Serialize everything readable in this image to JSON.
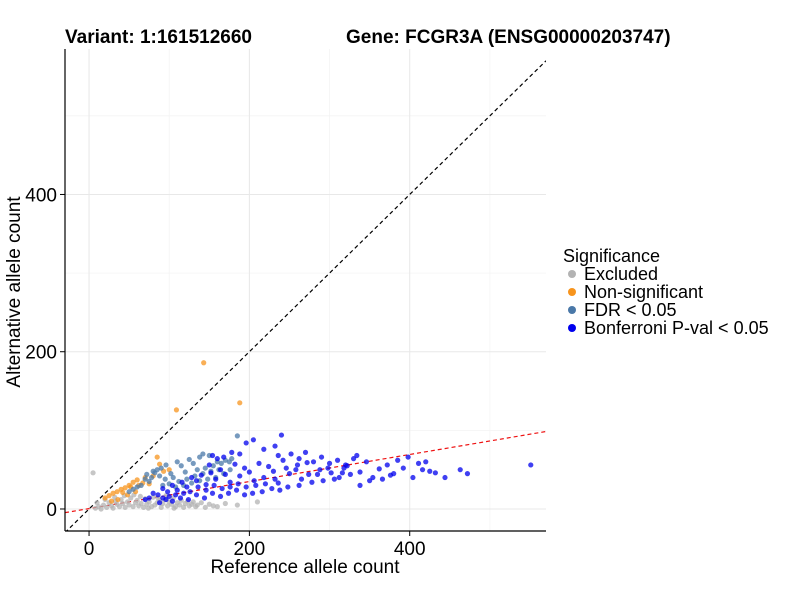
{
  "chart_data": {
    "type": "scatter",
    "title_left": "Variant: 1:161512660",
    "title_right": "Gene: FCGR3A (ENSG00000203747)",
    "xlabel": "Reference allele count",
    "ylabel": "Alternative allele count",
    "xlim": [
      -30,
      570
    ],
    "ylim": [
      -28,
      585
    ],
    "x_ticks": [
      0,
      200,
      400
    ],
    "y_ticks": [
      0,
      200,
      400
    ],
    "x_minor": [
      100,
      300,
      500
    ],
    "y_minor": [
      100,
      300,
      500
    ],
    "grid": true,
    "legend": {
      "title": "Significance",
      "position": "right",
      "items": [
        {
          "key": "excluded",
          "label": "Excluded",
          "color": "#b3b3b3"
        },
        {
          "key": "nonsig",
          "label": "Non-significant",
          "color": "#f7941d"
        },
        {
          "key": "fdr",
          "label": "FDR < 0.05",
          "color": "#4a78a8"
        },
        {
          "key": "bonf",
          "label": "Bonferroni P-val < 0.05",
          "color": "#0000ee"
        }
      ]
    },
    "reference_lines": [
      {
        "name": "identity",
        "style": "dashed",
        "color": "#000000",
        "slope": 1,
        "intercept": 0
      },
      {
        "name": "fitted",
        "style": "dashed",
        "color": "#ee1111",
        "slope": 0.172,
        "intercept": 0.5
      }
    ],
    "series": [
      {
        "name": "Excluded",
        "color": "#b3b3b3",
        "points": [
          [
            5,
            46
          ],
          [
            8,
            1
          ],
          [
            12,
            3
          ],
          [
            15,
            0
          ],
          [
            18,
            5
          ],
          [
            22,
            2
          ],
          [
            25,
            8
          ],
          [
            28,
            4
          ],
          [
            30,
            1
          ],
          [
            33,
            10
          ],
          [
            35,
            6
          ],
          [
            38,
            3
          ],
          [
            40,
            12
          ],
          [
            42,
            7
          ],
          [
            45,
            2
          ],
          [
            48,
            9
          ],
          [
            50,
            5
          ],
          [
            52,
            14
          ],
          [
            55,
            3
          ],
          [
            58,
            8
          ],
          [
            60,
            11
          ],
          [
            62,
            4
          ],
          [
            65,
            7
          ],
          [
            68,
            2
          ],
          [
            70,
            13
          ],
          [
            72,
            6
          ],
          [
            75,
            9
          ],
          [
            78,
            3
          ],
          [
            80,
            15
          ],
          [
            82,
            5
          ],
          [
            85,
            8
          ],
          [
            88,
            11
          ],
          [
            90,
            2
          ],
          [
            92,
            7
          ],
          [
            95,
            12
          ],
          [
            98,
            4
          ],
          [
            100,
            9
          ],
          [
            103,
            6
          ],
          [
            105,
            14
          ],
          [
            108,
            3
          ],
          [
            110,
            8
          ],
          [
            113,
            5
          ],
          [
            115,
            11
          ],
          [
            118,
            2
          ],
          [
            120,
            7
          ],
          [
            123,
            10
          ],
          [
            125,
            4
          ],
          [
            128,
            6
          ],
          [
            130,
            9
          ],
          [
            133,
            3
          ],
          [
            135,
            5
          ],
          [
            140,
            8
          ],
          [
            145,
            2
          ],
          [
            150,
            6
          ],
          [
            155,
            4
          ],
          [
            160,
            3
          ],
          [
            170,
            7
          ],
          [
            185,
            5
          ],
          [
            210,
            9
          ],
          [
            10,
            8
          ],
          [
            20,
            12
          ],
          [
            32,
            15
          ],
          [
            44,
            17
          ],
          [
            56,
            18
          ],
          [
            64,
            16
          ],
          [
            74,
            1
          ],
          [
            86,
            14
          ],
          [
            96,
            17
          ],
          [
            106,
            1
          ]
        ]
      },
      {
        "name": "Non-significant",
        "color": "#f7941d",
        "points": [
          [
            143,
            186
          ],
          [
            109,
            126
          ],
          [
            188,
            135
          ],
          [
            85,
            66
          ],
          [
            88,
            57
          ],
          [
            100,
            50
          ],
          [
            93,
            48
          ],
          [
            80,
            42
          ],
          [
            70,
            40
          ],
          [
            60,
            37
          ],
          [
            55,
            34
          ],
          [
            67,
            33
          ],
          [
            75,
            32
          ],
          [
            50,
            30
          ],
          [
            45,
            27
          ],
          [
            40,
            25
          ],
          [
            35,
            22
          ],
          [
            30,
            20
          ],
          [
            25,
            17
          ],
          [
            20,
            14
          ],
          [
            48,
            18
          ],
          [
            58,
            22
          ],
          [
            36,
            12
          ],
          [
            28,
            10
          ],
          [
            42,
            21
          ],
          [
            52,
            28
          ],
          [
            62,
            30
          ]
        ]
      },
      {
        "name": "FDR < 0.05",
        "color": "#4a78a8",
        "points": [
          [
            185,
            93
          ],
          [
            142,
            70
          ],
          [
            150,
            68
          ],
          [
            138,
            66
          ],
          [
            125,
            63
          ],
          [
            110,
            60
          ],
          [
            96,
            56
          ],
          [
            90,
            52
          ],
          [
            85,
            50
          ],
          [
            80,
            48
          ],
          [
            115,
            55
          ],
          [
            130,
            58
          ],
          [
            160,
            60
          ],
          [
            170,
            62
          ],
          [
            178,
            64
          ],
          [
            102,
            45
          ],
          [
            120,
            47
          ],
          [
            135,
            50
          ],
          [
            145,
            52
          ],
          [
            155,
            55
          ],
          [
            165,
            58
          ],
          [
            175,
            60
          ],
          [
            70,
            38
          ],
          [
            75,
            35
          ],
          [
            65,
            30
          ],
          [
            60,
            28
          ],
          [
            55,
            25
          ],
          [
            50,
            22
          ],
          [
            78,
            40
          ],
          [
            88,
            42
          ],
          [
            95,
            38
          ],
          [
            105,
            40
          ],
          [
            112,
            35
          ],
          [
            122,
            38
          ],
          [
            132,
            42
          ],
          [
            142,
            45
          ],
          [
            152,
            48
          ],
          [
            162,
            50
          ],
          [
            72,
            44
          ],
          [
            82,
            46
          ],
          [
            92,
            30
          ],
          [
            100,
            32
          ],
          [
            108,
            28
          ],
          [
            118,
            30
          ],
          [
            128,
            33
          ],
          [
            138,
            36
          ],
          [
            148,
            38
          ],
          [
            158,
            40
          ],
          [
            168,
            45
          ],
          [
            176,
            50
          ]
        ]
      },
      {
        "name": "Bonferroni P-val < 0.05",
        "color": "#0000ee",
        "points": [
          [
            551,
            56
          ],
          [
            472,
            45
          ],
          [
            463,
            50
          ],
          [
            444,
            40
          ],
          [
            425,
            48
          ],
          [
            411,
            58
          ],
          [
            385,
            62
          ],
          [
            376,
            43
          ],
          [
            362,
            51
          ],
          [
            350,
            36
          ],
          [
            338,
            47
          ],
          [
            322,
            55
          ],
          [
            312,
            40
          ],
          [
            298,
            52
          ],
          [
            285,
            44
          ],
          [
            272,
            59
          ],
          [
            265,
            38
          ],
          [
            258,
            50
          ],
          [
            250,
            45
          ],
          [
            242,
            62
          ],
          [
            236,
            33
          ],
          [
            230,
            48
          ],
          [
            224,
            54
          ],
          [
            218,
            40
          ],
          [
            212,
            58
          ],
          [
            206,
            36
          ],
          [
            200,
            47
          ],
          [
            194,
            52
          ],
          [
            188,
            42
          ],
          [
            182,
            57
          ],
          [
            176,
            34
          ],
          [
            170,
            44
          ],
          [
            164,
            50
          ],
          [
            158,
            38
          ],
          [
            152,
            46
          ],
          [
            146,
            31
          ],
          [
            140,
            43
          ],
          [
            134,
            36
          ],
          [
            128,
            40
          ],
          [
            122,
            28
          ],
          [
            116,
            34
          ],
          [
            110,
            24
          ],
          [
            104,
            30
          ],
          [
            98,
            22
          ],
          [
            92,
            26
          ],
          [
            86,
            18
          ],
          [
            80,
            20
          ],
          [
            75,
            14
          ],
          [
            70,
            12
          ],
          [
            240,
            94
          ],
          [
            232,
            80
          ],
          [
            218,
            76
          ],
          [
            205,
            88
          ],
          [
            196,
            84
          ],
          [
            188,
            70
          ],
          [
            178,
            72
          ],
          [
            168,
            66
          ],
          [
            160,
            64
          ],
          [
            154,
            68
          ],
          [
            150,
            56
          ],
          [
            236,
            68
          ],
          [
            252,
            70
          ],
          [
            262,
            64
          ],
          [
            270,
            72
          ],
          [
            280,
            60
          ],
          [
            290,
            66
          ],
          [
            300,
            58
          ],
          [
            310,
            62
          ],
          [
            320,
            56
          ],
          [
            330,
            64
          ],
          [
            262,
            30
          ],
          [
            278,
            34
          ],
          [
            292,
            36
          ],
          [
            306,
            38
          ],
          [
            316,
            46
          ],
          [
            326,
            44
          ],
          [
            248,
            28
          ],
          [
            238,
            24
          ],
          [
            228,
            26
          ],
          [
            216,
            22
          ],
          [
            204,
            20
          ],
          [
            194,
            18
          ],
          [
            184,
            24
          ],
          [
            174,
            20
          ],
          [
            164,
            16
          ],
          [
            154,
            20
          ],
          [
            144,
            14
          ],
          [
            134,
            18
          ],
          [
            124,
            12
          ],
          [
            114,
            14
          ],
          [
            104,
            10
          ],
          [
            96,
            12
          ],
          [
            88,
            8
          ],
          [
            338,
            30
          ],
          [
            354,
            40
          ],
          [
            366,
            38
          ],
          [
            380,
            45
          ],
          [
            392,
            52
          ],
          [
            404,
            40
          ],
          [
            416,
            50
          ],
          [
            432,
            46
          ],
          [
            420,
            60
          ],
          [
            398,
            66
          ],
          [
            372,
            56
          ],
          [
            346,
            60
          ],
          [
            334,
            68
          ],
          [
            318,
            52
          ],
          [
            302,
            46
          ],
          [
            288,
            50
          ],
          [
            274,
            44
          ],
          [
            260,
            56
          ],
          [
            246,
            52
          ],
          [
            232,
            38
          ],
          [
            220,
            32
          ],
          [
            208,
            30
          ],
          [
            196,
            28
          ],
          [
            186,
            32
          ],
          [
            176,
            28
          ],
          [
            166,
            26
          ],
          [
            156,
            30
          ],
          [
            146,
            24
          ],
          [
            136,
            28
          ],
          [
            126,
            22
          ],
          [
            118,
            20
          ],
          [
            108,
            18
          ],
          [
            100,
            16
          ],
          [
            92,
            14
          ]
        ]
      }
    ]
  }
}
